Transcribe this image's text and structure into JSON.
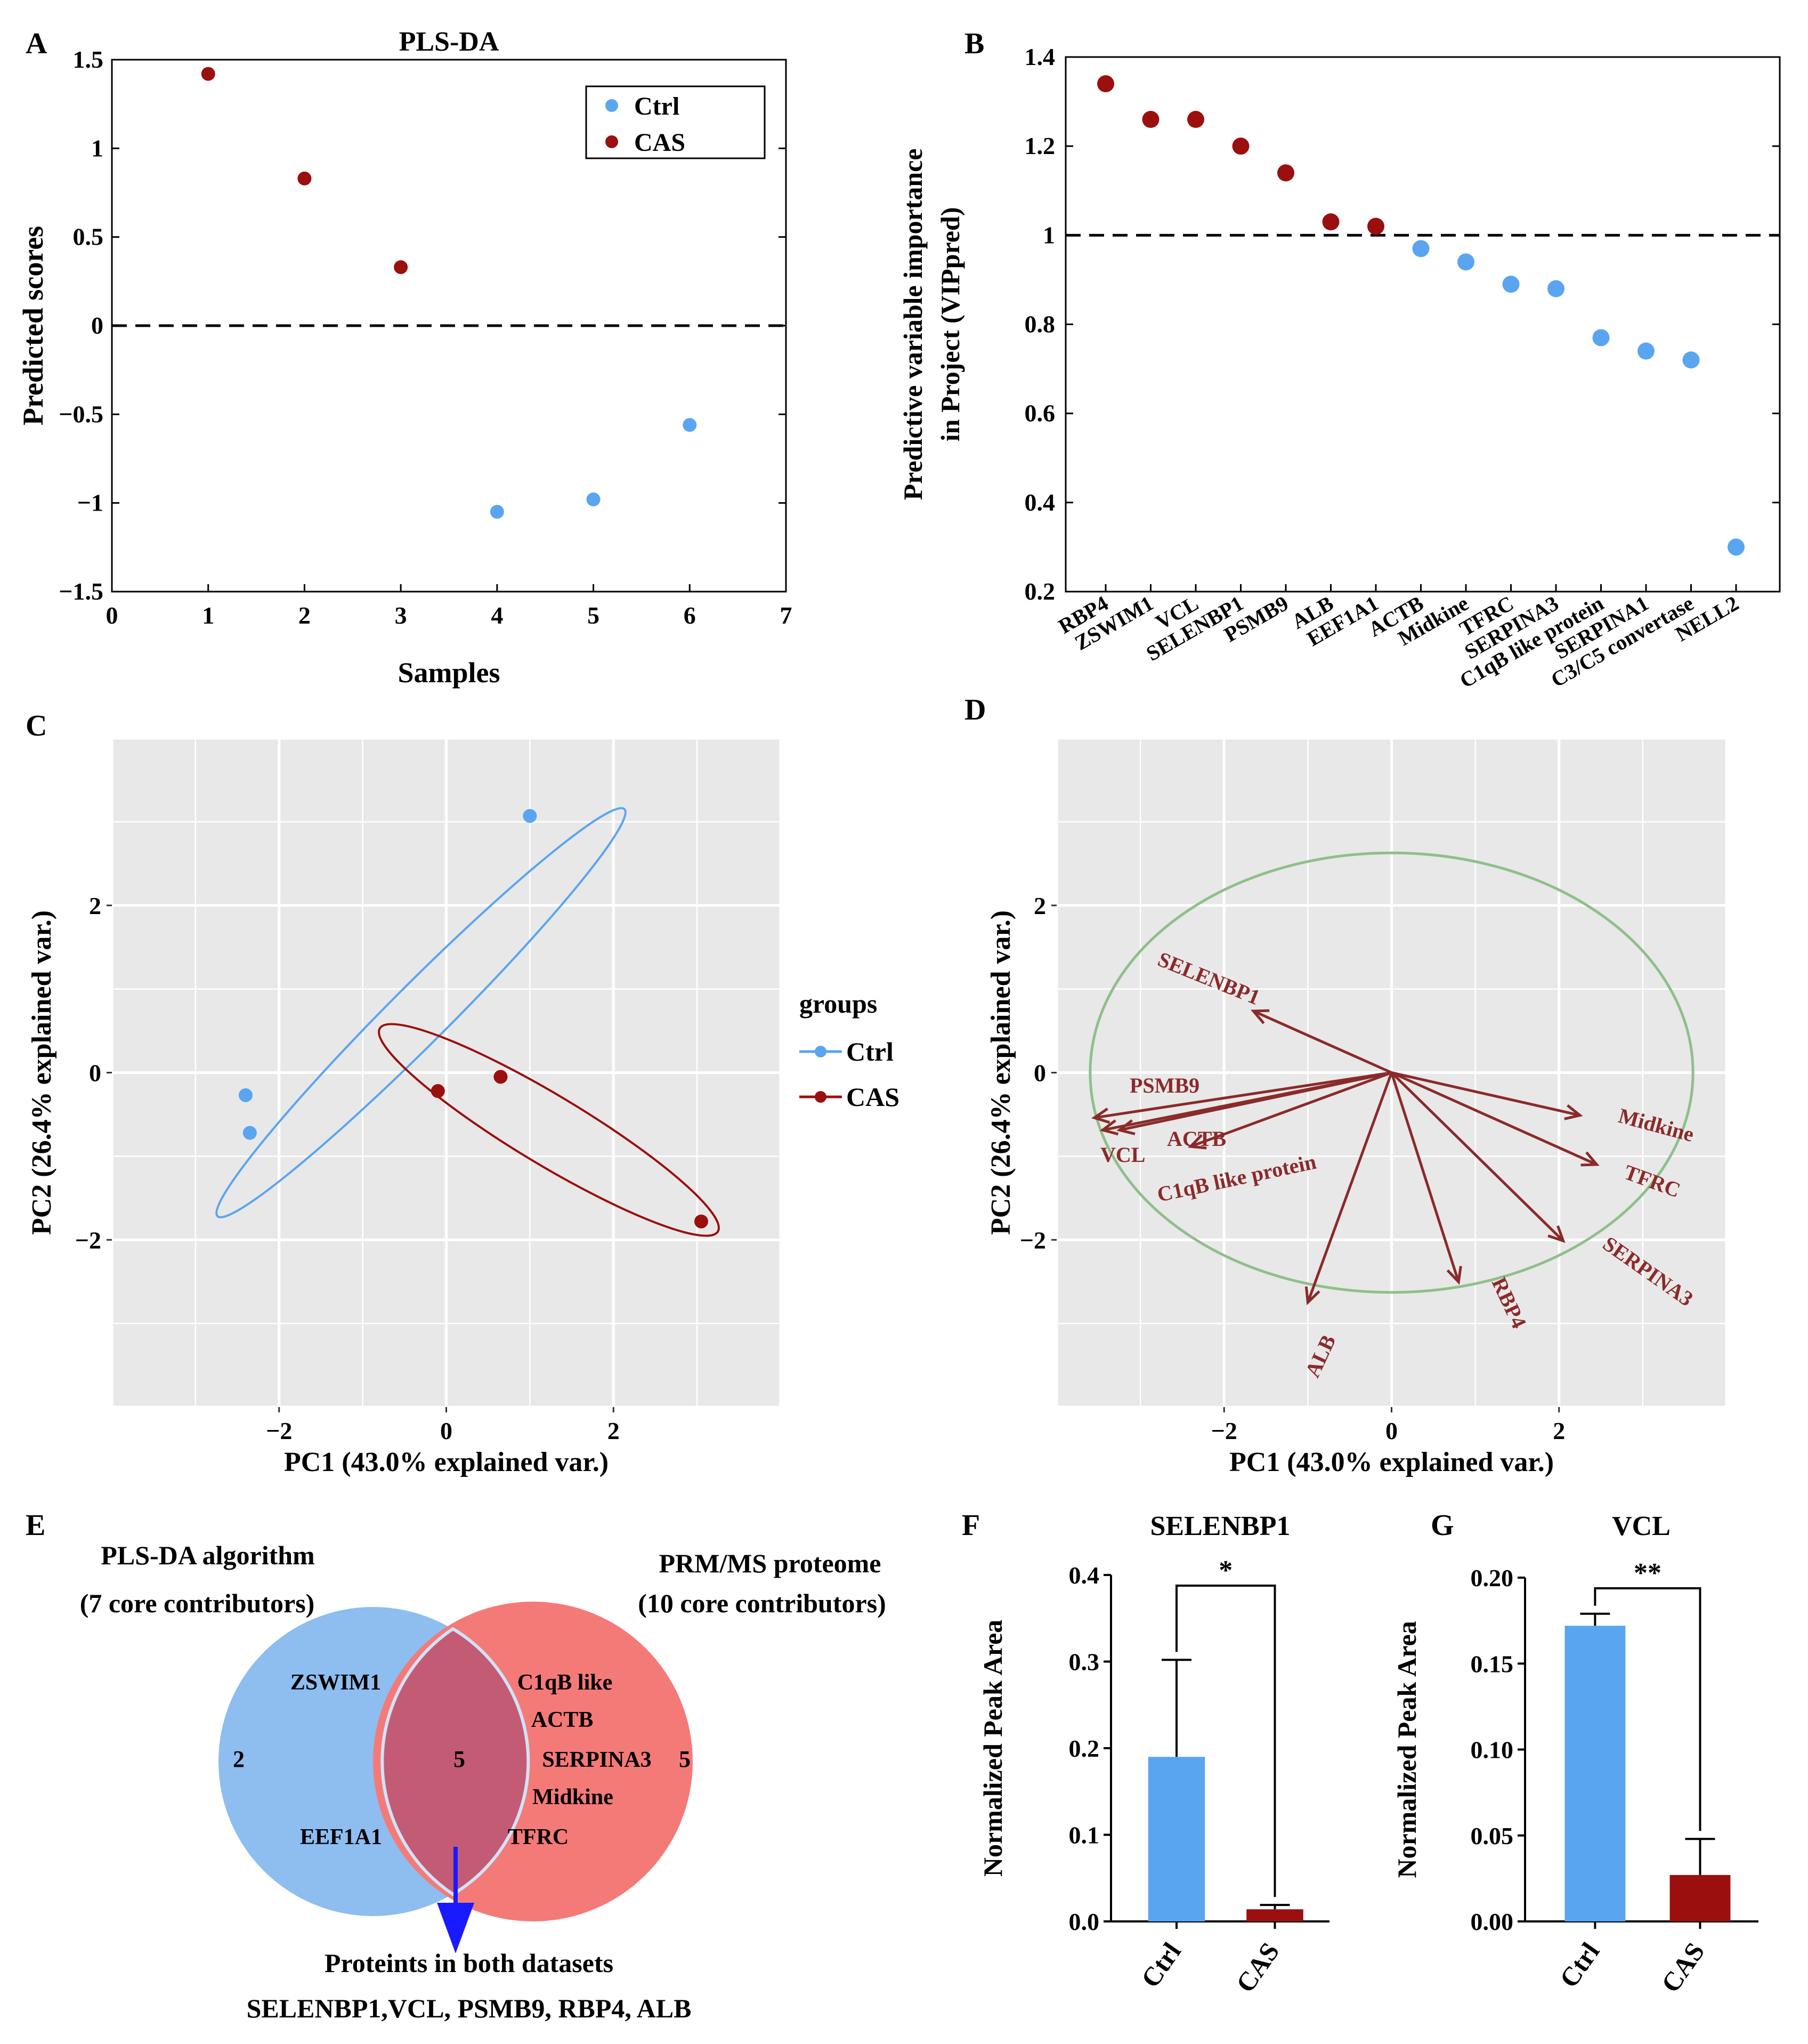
{
  "colors": {
    "ctrl": "#5aa5f0",
    "cas": "#9b0f0f",
    "arrow": "#8b2a2a",
    "circle": "#8fbf8a",
    "grid_bg": "#e8e8e8",
    "venn_left": "#8ebdf0",
    "venn_right": "#f47a78",
    "venn_overlap": "#c45b74",
    "venn_arrow": "#1a1aff"
  },
  "panels": {
    "A": {
      "letter": "A"
    },
    "B": {
      "letter": "B"
    },
    "C": {
      "letter": "C"
    },
    "D": {
      "letter": "D"
    },
    "E": {
      "letter": "E"
    },
    "F": {
      "letter": "F"
    },
    "G": {
      "letter": "G"
    }
  },
  "chart_data": [
    {
      "id": "A",
      "type": "scatter",
      "title": "PLS-DA",
      "xlabel": "Samples",
      "ylabel": "Predicted scores",
      "xlim": [
        0,
        7
      ],
      "ylim": [
        -1.5,
        1.5
      ],
      "xticks": [
        "0",
        "1",
        "2",
        "3",
        "4",
        "5",
        "6",
        "7"
      ],
      "yticks": [
        "−1.5",
        "−1",
        "−0.5",
        "0",
        "0.5",
        "1",
        "1.5"
      ],
      "reference_line": 0,
      "legend": [
        {
          "name": "Ctrl",
          "color": "#5aa5f0"
        },
        {
          "name": "CAS",
          "color": "#9b0f0f"
        }
      ],
      "series": [
        {
          "name": "CAS",
          "points": [
            [
              1,
              1.42
            ],
            [
              2,
              0.83
            ],
            [
              3,
              0.33
            ]
          ]
        },
        {
          "name": "Ctrl",
          "points": [
            [
              4,
              -1.05
            ],
            [
              5,
              -0.98
            ],
            [
              6,
              -0.56
            ]
          ]
        }
      ]
    },
    {
      "id": "B",
      "type": "scatter",
      "ylabel_line1": "Predictive variable importance",
      "ylabel_line2": "in Project (VIPpred)",
      "ylim": [
        0.2,
        1.4
      ],
      "yticks": [
        "0.2",
        "0.4",
        "0.6",
        "0.8",
        "1",
        "1.2",
        "1.4"
      ],
      "reference_line": 1,
      "categories": [
        "RBP4",
        "ZSWIM1",
        "VCL",
        "SELENBP1",
        "PSMB9",
        "ALB",
        "EEF1A1",
        "ACTB",
        "Midkine",
        "TFRC",
        "SERPINA3",
        "C1qB like protein",
        "SERPINA1",
        "C3/C5 convertase",
        "NELL2"
      ],
      "values": [
        1.34,
        1.26,
        1.26,
        1.2,
        1.14,
        1.03,
        1.02,
        0.97,
        0.94,
        0.89,
        0.88,
        0.77,
        0.74,
        0.72,
        0.3
      ],
      "groups": [
        "CAS",
        "CAS",
        "CAS",
        "CAS",
        "CAS",
        "CAS",
        "CAS",
        "Ctrl",
        "Ctrl",
        "Ctrl",
        "Ctrl",
        "Ctrl",
        "Ctrl",
        "Ctrl",
        "Ctrl"
      ]
    },
    {
      "id": "C",
      "type": "scatter",
      "xlabel": "PC1 (43.0% explained var.)",
      "ylabel": "PC2 (26.4% explained var.)",
      "xlim": [
        -4,
        4
      ],
      "ylim": [
        -4,
        4
      ],
      "xticks": [
        "−2",
        "0",
        "2"
      ],
      "yticks": [
        "−2",
        "0",
        "2"
      ],
      "legend_title": "groups",
      "legend": [
        {
          "name": "Ctrl",
          "color": "#5aa5f0"
        },
        {
          "name": "CAS",
          "color": "#9b0f0f"
        }
      ],
      "series": [
        {
          "name": "Ctrl",
          "points": [
            [
              -2.4,
              -0.27
            ],
            [
              -2.35,
              -0.72
            ],
            [
              1.0,
              3.07
            ]
          ]
        },
        {
          "name": "CAS",
          "points": [
            [
              -0.1,
              -0.22
            ],
            [
              0.65,
              -0.05
            ],
            [
              3.05,
              -1.78
            ]
          ]
        }
      ]
    },
    {
      "id": "D",
      "type": "biplot",
      "xlabel": "PC1 (43.0% explained var.)",
      "ylabel": "PC2 (26.4% explained var.)",
      "xlim": [
        -4,
        4
      ],
      "ylim": [
        -4,
        4
      ],
      "xticks": [
        "−2",
        "0",
        "2"
      ],
      "yticks": [
        "−2",
        "0",
        "2"
      ],
      "circle_radius": 3.6,
      "loadings": [
        {
          "name": "SELENBP1",
          "x": -1.65,
          "y": 0.75
        },
        {
          "name": "PSMB9",
          "x": -3.55,
          "y": -0.55
        },
        {
          "name": "VCL",
          "x": -3.45,
          "y": -0.7
        },
        {
          "name": "ACTB",
          "x": -3.25,
          "y": -0.7
        },
        {
          "name": "C1qB like protein",
          "x": -2.4,
          "y": -0.9
        },
        {
          "name": "Midkine",
          "x": 2.25,
          "y": -0.52
        },
        {
          "name": "TFRC",
          "x": 2.45,
          "y": -1.12
        },
        {
          "name": "SERPINA3",
          "x": 2.05,
          "y": -2.05
        },
        {
          "name": "ALB",
          "x": -1.0,
          "y": -2.8
        },
        {
          "name": "RBP4",
          "x": 0.8,
          "y": -2.55
        }
      ]
    },
    {
      "id": "E",
      "type": "venn",
      "left_title_line1": "PLS-DA algorithm",
      "left_title_line2": "(7 core contributors)",
      "right_title_line1": "PRM/MS proteome",
      "right_title_line2": "(10 core contributors)",
      "left_count": "2",
      "overlap_count": "5",
      "right_count": "5",
      "left_items": [
        "ZSWIM1",
        "EEF1A1"
      ],
      "right_items": [
        "C1qB like",
        "ACTB",
        "SERPINA3",
        "Midkine",
        "TFRC"
      ],
      "footer_line1": "Proteints in both datasets",
      "footer_line2": "SELENBP1,VCL, PSMB9, RBP4, ALB"
    },
    {
      "id": "F",
      "type": "bar",
      "title": "SELENBP1",
      "ylabel": "Normalized Peak Area",
      "ylim": [
        0,
        0.4
      ],
      "yticks": [
        "0.0",
        "0.1",
        "0.2",
        "0.3",
        "0.4"
      ],
      "categories": [
        "Ctrl",
        "CAS"
      ],
      "values": [
        0.19,
        0.014
      ],
      "errors": [
        0.112,
        0.005
      ],
      "significance": "*"
    },
    {
      "id": "G",
      "type": "bar",
      "title": "VCL",
      "ylabel": "Normalized Peak Area",
      "ylim": [
        0,
        0.2
      ],
      "yticks": [
        "0.00",
        "0.05",
        "0.10",
        "0.15",
        "0.20"
      ],
      "categories": [
        "Ctrl",
        "CAS"
      ],
      "values": [
        0.172,
        0.027
      ],
      "errors": [
        0.007,
        0.021
      ],
      "significance": "**"
    }
  ]
}
